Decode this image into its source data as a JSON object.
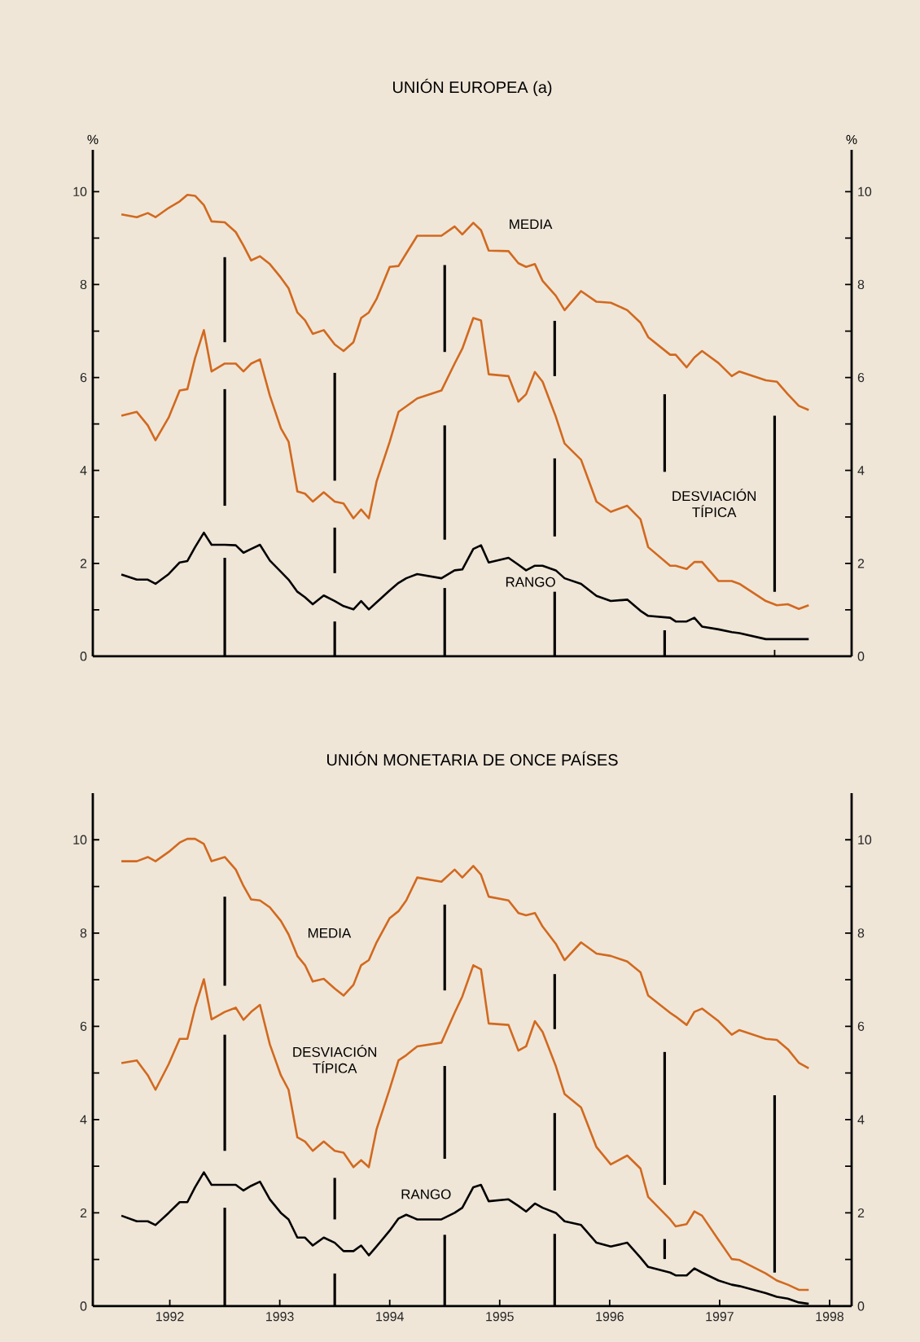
{
  "chart_data": [
    {
      "type": "line",
      "title": "UNIÓN EUROPEA (a)",
      "ylabel": "%",
      "y2label": "%",
      "tick_labels": "y",
      "x": [
        1992.06,
        1992.2,
        1992.3,
        1992.37,
        1992.49,
        1992.59,
        1992.66,
        1992.73,
        1992.81,
        1992.88,
        1993.0,
        1993.1,
        1993.17,
        1993.24,
        1993.32,
        1993.41,
        1993.51,
        1993.58,
        1993.66,
        1993.73,
        1993.8,
        1993.9,
        1994.0,
        1994.08,
        1994.17,
        1994.24,
        1994.31,
        1994.38,
        1994.5,
        1994.58,
        1994.65,
        1994.75,
        1994.97,
        1995.09,
        1995.16,
        1995.26,
        1995.33,
        1995.4,
        1995.58,
        1995.67,
        1995.74,
        1995.82,
        1995.89,
        1996.01,
        1996.09,
        1996.24,
        1996.38,
        1996.51,
        1996.66,
        1996.78,
        1996.85,
        1997.05,
        1997.1,
        1997.2,
        1997.27,
        1997.34,
        1997.49,
        1997.61,
        1997.68,
        1997.92,
        1998.02,
        1998.12,
        1998.22,
        1998.31
      ],
      "xlim": [
        1991.8,
        1998.7
      ],
      "xticks": [
        {
          "value": 1993,
          "label": null
        },
        {
          "value": 1994,
          "label": null
        },
        {
          "value": 1995,
          "label": null
        },
        {
          "value": 1996,
          "label": null
        },
        {
          "value": 1997,
          "label": null
        },
        {
          "value": 1998,
          "label": null
        }
      ],
      "ylim": [
        0,
        10.9
      ],
      "yticks": [
        0,
        {
          "value": 1,
          "label": null
        },
        2,
        {
          "value": 3,
          "label": null
        },
        4,
        {
          "value": 5,
          "label": null
        },
        6,
        {
          "value": 7,
          "label": null
        },
        8,
        {
          "value": 9,
          "label": null
        },
        10
      ],
      "y2lim": [
        0,
        10.9
      ],
      "y2ticks": [
        0,
        {
          "value": 1,
          "label": null
        },
        2,
        {
          "value": 3,
          "label": null
        },
        4,
        {
          "value": 5,
          "label": null
        },
        6,
        {
          "value": 7,
          "label": null
        },
        8,
        {
          "value": 9,
          "label": null
        },
        10
      ],
      "series": [
        {
          "name": "MEDIA",
          "color": "#d2691e",
          "values": [
            9.51,
            9.45,
            9.54,
            9.45,
            9.65,
            9.79,
            9.93,
            9.91,
            9.71,
            9.36,
            9.34,
            9.13,
            8.84,
            8.52,
            8.61,
            8.44,
            8.15,
            7.92,
            7.4,
            7.23,
            6.94,
            7.02,
            6.71,
            6.57,
            6.76,
            7.28,
            7.4,
            7.69,
            8.38,
            8.4,
            8.67,
            9.05,
            9.05,
            9.25,
            9.08,
            9.33,
            9.17,
            8.73,
            8.72,
            8.46,
            8.38,
            8.44,
            8.08,
            7.76,
            7.45,
            7.86,
            7.63,
            7.61,
            7.45,
            7.18,
            6.87,
            6.49,
            6.49,
            6.22,
            6.43,
            6.57,
            6.31,
            6.03,
            6.13,
            5.94,
            5.91,
            5.64,
            5.39,
            5.3
          ]
        },
        {
          "name": "DESVIACIÓN TÍPICA",
          "color": "#d2691e",
          "values": [
            5.18,
            5.26,
            4.97,
            4.65,
            5.14,
            5.72,
            5.75,
            6.42,
            7.02,
            6.13,
            6.3,
            6.3,
            6.13,
            6.3,
            6.39,
            5.61,
            4.91,
            4.62,
            3.55,
            3.5,
            3.33,
            3.53,
            3.33,
            3.29,
            2.97,
            3.16,
            2.97,
            3.76,
            4.62,
            5.26,
            5.38,
            5.55,
            5.72,
            6.3,
            6.62,
            7.28,
            7.23,
            6.07,
            6.03,
            5.48,
            5.64,
            6.12,
            5.91,
            5.16,
            4.58,
            4.23,
            3.33,
            3.11,
            3.24,
            2.95,
            2.35,
            1.95,
            1.95,
            1.88,
            2.03,
            2.03,
            1.62,
            1.62,
            1.56,
            1.19,
            1.1,
            1.12,
            1.02,
            1.1
          ]
        },
        {
          "name": "RANGO",
          "color": "#000000",
          "values": [
            1.76,
            1.65,
            1.65,
            1.56,
            1.77,
            2.02,
            2.05,
            2.35,
            2.66,
            2.4,
            2.4,
            2.39,
            2.23,
            2.31,
            2.4,
            2.06,
            1.82,
            1.65,
            1.39,
            1.27,
            1.12,
            1.31,
            1.19,
            1.08,
            1.01,
            1.19,
            1.01,
            1.16,
            1.42,
            1.58,
            1.68,
            1.77,
            1.68,
            1.85,
            1.87,
            2.31,
            2.39,
            2.02,
            2.12,
            1.97,
            1.85,
            1.95,
            1.95,
            1.85,
            1.68,
            1.56,
            1.3,
            1.19,
            1.22,
            0.98,
            0.87,
            0.83,
            0.75,
            0.75,
            0.83,
            0.64,
            0.58,
            0.52,
            0.5,
            0.37,
            0.37,
            0.37,
            0.37,
            0.37
          ]
        },
        {
          "type": "bar",
          "color": "#000000",
          "x": [
            1993,
            1994,
            1995,
            1996,
            1997,
            1998
          ],
          "base": [
            0,
            0,
            0,
            0,
            0,
            1.39
          ],
          "values": [
            2.12,
            0.75,
            1.47,
            1.39,
            0.56,
            3.79
          ]
        },
        {
          "type": "bar",
          "color": "#000000",
          "x": [
            1993,
            1994,
            1995,
            1996,
            1997
          ],
          "base": [
            3.24,
            1.79,
            2.51,
            2.58,
            3.97
          ],
          "values": [
            2.51,
            0.98,
            2.46,
            1.68,
            1.67
          ]
        },
        {
          "type": "bar",
          "color": "#000000",
          "x": [
            1993,
            1994,
            1995,
            1996
          ],
          "base": [
            6.76,
            3.78,
            6.55,
            6.03
          ],
          "values": [
            1.83,
            2.32,
            1.87,
            1.19
          ]
        }
      ]
    },
    {
      "type": "line",
      "title": "UNIÓN MONETARIA DE ONCE PAÍSES",
      "x": [
        1992.06,
        1992.2,
        1992.3,
        1992.37,
        1992.49,
        1992.59,
        1992.66,
        1992.73,
        1992.81,
        1992.88,
        1993.0,
        1993.1,
        1993.17,
        1993.24,
        1993.32,
        1993.41,
        1993.51,
        1993.58,
        1993.66,
        1993.73,
        1993.8,
        1993.9,
        1994.0,
        1994.08,
        1994.17,
        1994.24,
        1994.31,
        1994.38,
        1994.5,
        1994.58,
        1994.65,
        1994.75,
        1994.97,
        1995.09,
        1995.16,
        1995.26,
        1995.33,
        1995.4,
        1995.58,
        1995.67,
        1995.74,
        1995.82,
        1995.89,
        1996.01,
        1996.09,
        1996.24,
        1996.38,
        1996.51,
        1996.66,
        1996.78,
        1996.85,
        1997.05,
        1997.1,
        1997.2,
        1997.27,
        1997.34,
        1997.49,
        1997.61,
        1997.68,
        1997.92,
        1998.02,
        1998.12,
        1998.22,
        1998.31
      ],
      "xlim": [
        1991.8,
        1998.7
      ],
      "xticks": [
        {
          "value": 1992.5,
          "label": "1992"
        },
        {
          "value": 1993.5,
          "label": "1993"
        },
        {
          "value": 1994.5,
          "label": "1994"
        },
        {
          "value": 1995.5,
          "label": "1995"
        },
        {
          "value": 1996.5,
          "label": "1996"
        },
        {
          "value": 1997.5,
          "label": "1997"
        },
        {
          "value": 1998.5,
          "label": "1998"
        }
      ],
      "ylim": [
        0,
        11
      ],
      "yticks": [
        0,
        {
          "value": 1,
          "label": null
        },
        2,
        {
          "value": 3,
          "label": null
        },
        4,
        {
          "value": 5,
          "label": null
        },
        6,
        {
          "value": 7,
          "label": null
        },
        8,
        {
          "value": 9,
          "label": null
        },
        10
      ],
      "y2lim": [
        0,
        11
      ],
      "y2ticks": [
        0,
        {
          "value": 1,
          "label": null
        },
        2,
        {
          "value": 3,
          "label": null
        },
        4,
        {
          "value": 5,
          "label": null
        },
        6,
        {
          "value": 7,
          "label": null
        },
        8,
        {
          "value": 9,
          "label": null
        },
        10
      ],
      "series": [
        {
          "name": "MEDIA",
          "color": "#d2691e",
          "values": [
            9.54,
            9.54,
            9.63,
            9.54,
            9.74,
            9.94,
            10.02,
            10.02,
            9.91,
            9.54,
            9.63,
            9.36,
            9.01,
            8.72,
            8.7,
            8.55,
            8.26,
            7.97,
            7.51,
            7.31,
            6.96,
            7.02,
            6.81,
            6.66,
            6.89,
            7.31,
            7.42,
            7.8,
            8.32,
            8.47,
            8.7,
            9.19,
            9.1,
            9.36,
            9.19,
            9.44,
            9.25,
            8.78,
            8.7,
            8.43,
            8.38,
            8.43,
            8.14,
            7.77,
            7.42,
            7.8,
            7.56,
            7.51,
            7.39,
            7.16,
            6.66,
            6.29,
            6.21,
            6.03,
            6.31,
            6.38,
            6.11,
            5.82,
            5.92,
            5.73,
            5.71,
            5.51,
            5.22,
            5.1
          ]
        },
        {
          "name": "DESVIACIÓN TÍPICA",
          "color": "#d2691e",
          "values": [
            5.21,
            5.27,
            4.95,
            4.64,
            5.19,
            5.73,
            5.73,
            6.4,
            7.01,
            6.15,
            6.31,
            6.4,
            6.14,
            6.31,
            6.46,
            5.61,
            4.95,
            4.64,
            3.62,
            3.53,
            3.33,
            3.53,
            3.33,
            3.29,
            2.98,
            3.13,
            2.98,
            3.79,
            4.66,
            5.27,
            5.38,
            5.57,
            5.65,
            6.29,
            6.64,
            7.31,
            7.22,
            6.06,
            6.03,
            5.48,
            5.57,
            6.11,
            5.88,
            5.15,
            4.55,
            4.26,
            3.41,
            3.04,
            3.23,
            2.95,
            2.34,
            1.86,
            1.71,
            1.76,
            2.03,
            1.94,
            1.42,
            1.01,
            0.99,
            0.7,
            0.55,
            0.46,
            0.35,
            0.35
          ]
        },
        {
          "name": "RANGO",
          "color": "#000000",
          "values": [
            1.94,
            1.82,
            1.82,
            1.74,
            2.0,
            2.23,
            2.23,
            2.55,
            2.87,
            2.6,
            2.6,
            2.6,
            2.48,
            2.58,
            2.67,
            2.29,
            2.0,
            1.86,
            1.47,
            1.47,
            1.3,
            1.47,
            1.36,
            1.18,
            1.18,
            1.3,
            1.09,
            1.28,
            1.62,
            1.88,
            1.96,
            1.86,
            1.86,
            2.0,
            2.11,
            2.55,
            2.6,
            2.25,
            2.29,
            2.15,
            2.03,
            2.2,
            2.11,
            2.0,
            1.82,
            1.74,
            1.36,
            1.28,
            1.36,
            1.04,
            0.84,
            0.72,
            0.66,
            0.66,
            0.81,
            0.72,
            0.55,
            0.46,
            0.43,
            0.28,
            0.2,
            0.16,
            0.08,
            0.05
          ]
        },
        {
          "type": "bar",
          "color": "#000000",
          "x": [
            1993,
            1994,
            1995,
            1996,
            1997,
            1998
          ],
          "base": [
            0,
            0,
            0,
            0,
            1.01,
            0.72
          ],
          "values": [
            2.11,
            0.7,
            1.53,
            1.55,
            0.43,
            3.8
          ]
        },
        {
          "type": "bar",
          "color": "#000000",
          "x": [
            1993,
            1994,
            1995,
            1996,
            1997
          ],
          "base": [
            3.33,
            1.86,
            3.16,
            2.48,
            2.6
          ],
          "values": [
            2.49,
            0.89,
            1.99,
            1.66,
            2.85
          ]
        },
        {
          "type": "bar",
          "color": "#000000",
          "x": [
            1993,
            1995,
            1996
          ],
          "base": [
            6.87,
            6.77,
            5.94
          ],
          "values": [
            1.91,
            1.84,
            1.18
          ]
        }
      ]
    }
  ]
}
